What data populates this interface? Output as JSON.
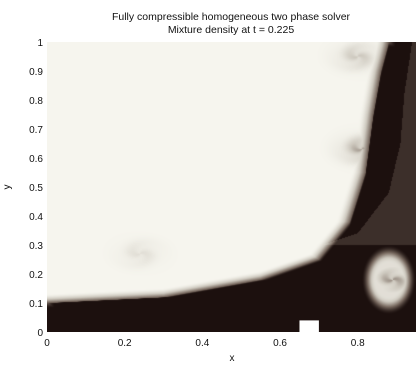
{
  "chart_data": {
    "type": "heatmap",
    "title": "Fully compressible homogeneous two phase solver",
    "subtitle": "Mixture density at t = 0.225",
    "xlabel": "x",
    "ylabel": "y",
    "xlim": [
      0,
      0.95
    ],
    "ylim": [
      0,
      1
    ],
    "x_ticks": [
      0,
      0.2,
      0.4,
      0.6,
      0.8
    ],
    "x_tick_labels": [
      "0",
      "0.2",
      "0.4",
      "0.6",
      "0.8"
    ],
    "y_ticks": [
      0,
      0.1,
      0.2,
      0.3,
      0.4,
      0.5,
      0.6,
      0.7,
      0.8,
      0.9,
      1
    ],
    "y_tick_labels": [
      "0",
      "0.1",
      "0.2",
      "0.3",
      "0.4",
      "0.5",
      "0.6",
      "0.7",
      "0.8",
      "0.9",
      "1"
    ],
    "colormap": "light-to-dark (bone)",
    "grid": false,
    "field": {
      "outer_dense_layer": {
        "bottom_band_top_y": 0.1,
        "right_wall_inner_x": 0.84,
        "bottom_right_corner_x": 0.7,
        "right_layer_crest": [
          [
            0.0,
            0.1
          ],
          [
            0.3,
            0.12
          ],
          [
            0.55,
            0.18
          ],
          [
            0.7,
            0.25
          ],
          [
            0.78,
            0.38
          ],
          [
            0.82,
            0.55
          ],
          [
            0.84,
            0.75
          ],
          [
            0.86,
            0.9
          ],
          [
            0.88,
            1.0
          ]
        ],
        "outer_contour": [
          [
            0.0,
            0.15
          ],
          [
            0.3,
            0.18
          ],
          [
            0.6,
            0.26
          ],
          [
            0.78,
            0.34
          ],
          [
            0.86,
            0.48
          ],
          [
            0.89,
            0.65
          ],
          [
            0.9,
            0.82
          ],
          [
            0.92,
            1.0
          ]
        ]
      },
      "obstacle": {
        "x0": 0.65,
        "x1": 0.7,
        "y0": 0,
        "y1": 0.04
      },
      "vortices": [
        {
          "x": 0.24,
          "y": 0.27,
          "strength": 0.15
        },
        {
          "x": 0.81,
          "y": 0.63,
          "strength": 0.45
        },
        {
          "x": 0.8,
          "y": 0.95,
          "strength": 0.3
        },
        {
          "x": 0.89,
          "y": 0.18,
          "strength": 0.5
        }
      ]
    }
  }
}
